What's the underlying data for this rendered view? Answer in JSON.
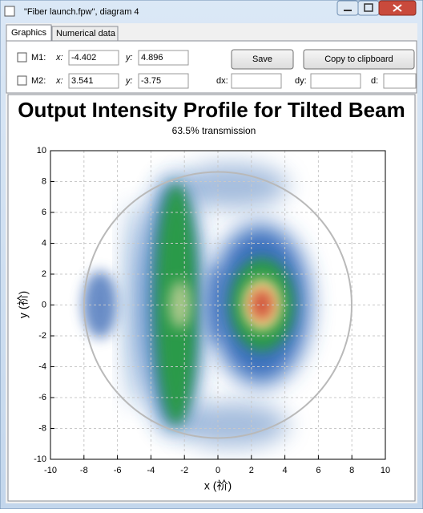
{
  "window": {
    "title": "\"Fiber launch.fpw\", diagram 4"
  },
  "tabs": [
    "Graphics",
    "Numerical data"
  ],
  "markers": [
    {
      "label": "M1:",
      "x_label": "x:",
      "x": "-4.402",
      "y_label": "y:",
      "y": "4.896"
    },
    {
      "label": "M2:",
      "x_label": "x:",
      "x": "3.541",
      "y_label": "y:",
      "y": "-3.75"
    }
  ],
  "buttons": [
    "Save",
    "Copy to clipboard"
  ],
  "delta_labels": [
    "dx:",
    "dy:",
    "d:"
  ],
  "chart_data": {
    "type": "heatmap",
    "title": "Output Intensity Profile for Tilted Beam",
    "subtitle": "63.5% transmission",
    "x_label": "x (祄)",
    "y_label": "y (祄)",
    "xlim": [
      -10,
      10
    ],
    "ylim": [
      -10,
      10
    ],
    "xticks": [
      -10,
      -8,
      -6,
      -4,
      -2,
      0,
      2,
      4,
      6,
      8,
      10
    ],
    "yticks": [
      -10,
      -8,
      -6,
      -4,
      -2,
      0,
      2,
      4,
      6,
      8,
      10
    ],
    "grid": true
  }
}
